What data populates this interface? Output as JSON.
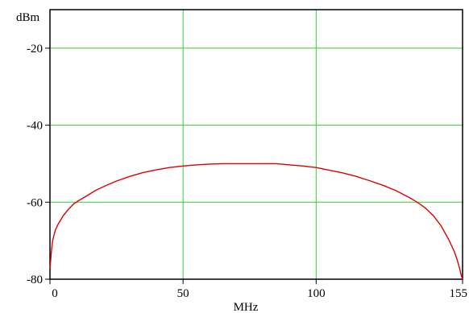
{
  "chart_data": {
    "type": "line",
    "xlabel": "MHz",
    "ylabel": "dBm",
    "xlim": [
      0,
      155
    ],
    "ylim": [
      -80,
      -10
    ],
    "x_ticks": [
      0,
      50,
      100,
      155
    ],
    "x_tick_labels": [
      "0",
      "50",
      "100",
      "155"
    ],
    "y_ticks": [
      -20,
      -40,
      -60,
      -80
    ],
    "y_tick_labels": [
      "-20",
      "-40",
      "-60",
      "-80"
    ],
    "x_grid": [
      50,
      100
    ],
    "y_grid": [
      -20,
      -40,
      -60
    ],
    "grid": true,
    "legend": "none",
    "colors": {
      "series": "#e00000",
      "grid": "#33cc33",
      "axes": "#000000"
    },
    "series": [
      {
        "x": [
          0,
          0.5,
          1,
          2,
          3,
          5,
          7,
          9,
          11,
          14,
          17,
          20,
          25,
          30,
          35,
          40,
          45,
          50,
          55,
          60,
          65,
          70,
          75,
          80,
          85,
          90,
          95,
          100,
          105,
          110,
          115,
          120,
          125,
          130,
          135,
          138,
          141,
          144,
          147,
          150,
          152,
          153,
          154,
          154.5,
          155
        ],
        "y": [
          -77.3,
          -73.0,
          -70.0,
          -67.3,
          -65.8,
          -63.5,
          -61.8,
          -60.4,
          -59.5,
          -58.3,
          -57.0,
          -56.0,
          -54.5,
          -53.3,
          -52.3,
          -51.6,
          -51.0,
          -50.6,
          -50.3,
          -50.1,
          -50.0,
          -50.0,
          -50.0,
          -50.0,
          -50.0,
          -50.3,
          -50.6,
          -51.0,
          -51.7,
          -52.4,
          -53.3,
          -54.4,
          -55.6,
          -57.0,
          -58.8,
          -60.0,
          -61.5,
          -63.5,
          -66.2,
          -70.0,
          -73.0,
          -75.0,
          -77.5,
          -79.0,
          -80.0
        ]
      }
    ]
  }
}
